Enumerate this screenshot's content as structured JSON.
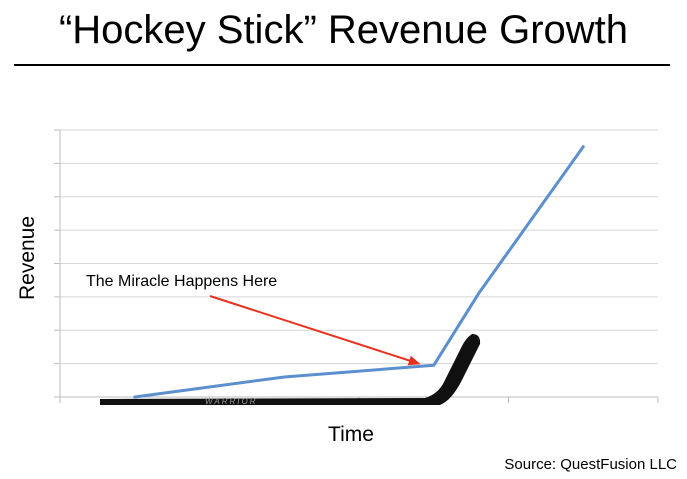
{
  "title": "“Hockey Stick” Revenue Growth",
  "source": "Source: QuestFusion LLC",
  "stick_brand": "WARRIOR",
  "chart_data": {
    "type": "line",
    "xlabel": "Time",
    "ylabel": "Revenue",
    "grid": true,
    "x": [
      0,
      1.0,
      2.0,
      2.3,
      3.0
    ],
    "series": [
      {
        "values": [
          0,
          0.6,
          0.95,
          3.1,
          7.5
        ],
        "color": "#5b8fce"
      }
    ],
    "xlim": [
      -0.5,
      3.5
    ],
    "ylim": [
      0,
      8
    ],
    "annotations": [
      {
        "text": "The Miracle Happens Here",
        "target_x": 1.9,
        "target_y": 1.0,
        "arrow_color": "#e8321e"
      }
    ]
  }
}
